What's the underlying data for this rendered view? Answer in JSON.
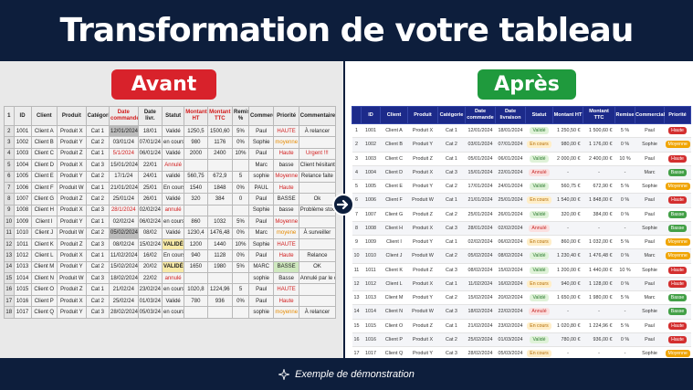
{
  "header": {
    "title": "Transformation de votre tableau"
  },
  "labels": {
    "avant": "Avant",
    "apres": "Après"
  },
  "footer": {
    "text": "Exemple de démonstration",
    "icon": "sparkle-icon"
  },
  "colors": {
    "navy": "#0d1e3c",
    "avant": "#d8222b",
    "apres": "#1f9a3d",
    "header_blue": "#1c2a8a"
  },
  "old_table": {
    "headers": [
      "1",
      "ID",
      "Client",
      "Produit",
      "Catégorie",
      "Date commande",
      "Date livr.",
      "Statut",
      "Montant HT",
      "Montant TTC",
      "Remise %",
      "Commercial",
      "Priorité",
      "Commentaires"
    ],
    "rows": [
      [
        "2",
        "1001",
        "Client A",
        "Produit X",
        "Cat 1",
        "12/01/2024",
        "18/01",
        "Validé",
        "1250,5",
        "1500,60",
        "5%",
        "Paul",
        "HAUTE",
        "À relancer"
      ],
      [
        "3",
        "1002",
        "Client B",
        "Produit Y",
        "Cat 2",
        "03/01/24",
        "07/01/24",
        "en cours",
        "980",
        "1176",
        "0%",
        "Sophie",
        "moyenne",
        ""
      ],
      [
        "4",
        "1003",
        "Client C",
        "Produit Z",
        "Cat 1",
        "5/1/2024",
        "06/01/24",
        "Validé",
        "2000",
        "2400",
        "10%",
        "Paul",
        "Haute",
        "Urgent !!!"
      ],
      [
        "5",
        "1004",
        "Client D",
        "Produit X",
        "Cat 3",
        "15/01/2024",
        "22/01",
        "Annulé",
        "",
        "",
        "",
        "Marc",
        "basse",
        "Client hésitant"
      ],
      [
        "6",
        "1005",
        "Client E",
        "Produit Y",
        "Cat 2",
        "17/1/24",
        "24/01",
        "validé",
        "560,75",
        "672,9",
        "5",
        "sophie",
        "Moyenne",
        "Relance faite"
      ],
      [
        "7",
        "1006",
        "Client F",
        "Produit W",
        "Cat 1",
        "21/01/2024",
        "25/01",
        "En cours",
        "1540",
        "1848",
        "0%",
        "PAUL",
        "Haute",
        ""
      ],
      [
        "8",
        "1007",
        "Client G",
        "Produit Z",
        "Cat 2",
        "25/01/24",
        "26/01",
        "Validé",
        "320",
        "384",
        "0",
        "Paul",
        "BASSE",
        "Ok"
      ],
      [
        "9",
        "1008",
        "Client H",
        "Produit X",
        "Cat 3",
        "28/1/2024",
        "02/02/24",
        "annulé",
        "",
        "",
        "",
        "Sophie",
        "basse",
        "Problème stock"
      ],
      [
        "10",
        "1009",
        "Client I",
        "Produit Y",
        "Cat 1",
        "02/02/24",
        "06/02/24",
        "en cours",
        "860",
        "1032",
        "5%",
        "Paul",
        "Moyenne",
        ""
      ],
      [
        "11",
        "1010",
        "Client J",
        "Produit W",
        "Cat 2",
        "05/02/2024",
        "08/02",
        "Validé",
        "1230,4",
        "1476,48",
        "0%",
        "Marc",
        "moyene",
        "À surveiller"
      ],
      [
        "12",
        "1011",
        "Client K",
        "Produit Z",
        "Cat 3",
        "08/02/24",
        "15/02/24",
        "VALIDÉ",
        "1200",
        "1440",
        "10%",
        "Sophie",
        "HAUTE",
        ""
      ],
      [
        "13",
        "1012",
        "Client L",
        "Produit X",
        "Cat 1",
        "11/02/2024",
        "16/02",
        "En cours",
        "940",
        "1128",
        "0%",
        "Paul",
        "Haute",
        "Relance"
      ],
      [
        "14",
        "1013",
        "Client M",
        "Produit Y",
        "Cat 2",
        "15/02/2024",
        "20/02",
        "VALIDÉ",
        "1650",
        "1980",
        "5%",
        "MARC",
        "BASSE",
        "OK"
      ],
      [
        "15",
        "1014",
        "Client N",
        "Produit W",
        "Cat 3",
        "18/02/2024",
        "22/02",
        "annulé",
        "",
        "",
        "",
        "sophie",
        "Basse",
        "Annulé par le client"
      ],
      [
        "16",
        "1015",
        "Client O",
        "Produit Z",
        "Cat 1",
        "21/02/24",
        "23/02/24",
        "en cours",
        "1020,8",
        "1224,96",
        "5",
        "Paul",
        "HAUTE",
        ""
      ],
      [
        "17",
        "1016",
        "Client P",
        "Produit X",
        "Cat 2",
        "25/02/24",
        "01/03/24",
        "Validé",
        "780",
        "936",
        "0%",
        "Paul",
        "Haute",
        ""
      ],
      [
        "18",
        "1017",
        "Client Q",
        "Produit Y",
        "Cat 3",
        "28/02/2024",
        "05/03/24",
        "en cours",
        "",
        "",
        "",
        "sophie",
        "moyenne",
        "À relancer"
      ]
    ]
  },
  "new_table": {
    "headers": [
      "",
      "ID",
      "Client",
      "Produit",
      "Catégorie",
      "Date commande",
      "Date livraison",
      "Statut",
      "Montant HT",
      "Montant TTC",
      "Remise",
      "Commercial",
      "Priorité"
    ],
    "rows": [
      [
        "1",
        "1001",
        "Client A",
        "Produit X",
        "Cat 1",
        "12/01/2024",
        "18/01/2024",
        "Validé",
        "1 250,50 €",
        "1 500,60 €",
        "5 %",
        "Paul",
        "Haute"
      ],
      [
        "2",
        "1002",
        "Client B",
        "Produit Y",
        "Cat 2",
        "03/01/2024",
        "07/01/2024",
        "En cours",
        "980,00 €",
        "1 176,00 €",
        "0 %",
        "Sophie",
        "Moyenne"
      ],
      [
        "3",
        "1003",
        "Client C",
        "Produit Z",
        "Cat 1",
        "05/01/2024",
        "06/01/2024",
        "Validé",
        "2 000,00 €",
        "2 400,00 €",
        "10 %",
        "Paul",
        "Haute"
      ],
      [
        "4",
        "1004",
        "Client D",
        "Produit X",
        "Cat 3",
        "15/01/2024",
        "22/01/2024",
        "Annulé",
        "-",
        "-",
        "-",
        "Marc",
        "Basse"
      ],
      [
        "5",
        "1005",
        "Client E",
        "Produit Y",
        "Cat 2",
        "17/01/2024",
        "24/01/2024",
        "Validé",
        "560,75 €",
        "672,90 €",
        "5 %",
        "Sophie",
        "Moyenne"
      ],
      [
        "6",
        "1006",
        "Client F",
        "Produit W",
        "Cat 1",
        "21/01/2024",
        "25/01/2024",
        "En cours",
        "1 540,00 €",
        "1 848,00 €",
        "0 %",
        "Paul",
        "Haute"
      ],
      [
        "7",
        "1007",
        "Client G",
        "Produit Z",
        "Cat 2",
        "25/01/2024",
        "26/01/2024",
        "Validé",
        "320,00 €",
        "384,00 €",
        "0 %",
        "Paul",
        "Basse"
      ],
      [
        "8",
        "1008",
        "Client H",
        "Produit X",
        "Cat 3",
        "28/01/2024",
        "02/02/2024",
        "Annulé",
        "-",
        "-",
        "-",
        "Sophie",
        "Basse"
      ],
      [
        "9",
        "1009",
        "Client I",
        "Produit Y",
        "Cat 1",
        "02/02/2024",
        "06/02/2024",
        "En cours",
        "860,00 €",
        "1 032,00 €",
        "5 %",
        "Paul",
        "Moyenne"
      ],
      [
        "10",
        "1010",
        "Client J",
        "Produit W",
        "Cat 2",
        "05/02/2024",
        "08/02/2024",
        "Validé",
        "1 230,40 €",
        "1 476,48 €",
        "0 %",
        "Marc",
        "Moyenne"
      ],
      [
        "11",
        "1011",
        "Client K",
        "Produit Z",
        "Cat 3",
        "08/02/2024",
        "15/02/2024",
        "Validé",
        "1 200,00 €",
        "1 440,00 €",
        "10 %",
        "Sophie",
        "Haute"
      ],
      [
        "12",
        "1012",
        "Client L",
        "Produit X",
        "Cat 1",
        "11/02/2024",
        "16/02/2024",
        "En cours",
        "940,00 €",
        "1 128,00 €",
        "0 %",
        "Paul",
        "Haute"
      ],
      [
        "13",
        "1013",
        "Client M",
        "Produit Y",
        "Cat 2",
        "15/02/2024",
        "20/02/2024",
        "Validé",
        "1 650,00 €",
        "1 980,00 €",
        "5 %",
        "Marc",
        "Basse"
      ],
      [
        "14",
        "1014",
        "Client N",
        "Produit W",
        "Cat 3",
        "18/02/2024",
        "22/02/2024",
        "Annulé",
        "-",
        "-",
        "-",
        "Sophie",
        "Basse"
      ],
      [
        "15",
        "1015",
        "Client O",
        "Produit Z",
        "Cat 1",
        "21/02/2024",
        "23/02/2024",
        "En cours",
        "1 020,80 €",
        "1 224,96 €",
        "5 %",
        "Paul",
        "Haute"
      ],
      [
        "16",
        "1016",
        "Client P",
        "Produit X",
        "Cat 2",
        "25/02/2024",
        "01/03/2024",
        "Validé",
        "780,00 €",
        "936,00 €",
        "0 %",
        "Paul",
        "Haute"
      ],
      [
        "17",
        "1017",
        "Client Q",
        "Produit Y",
        "Cat 3",
        "28/02/2024",
        "05/03/2024",
        "En cours",
        "-",
        "-",
        "-",
        "Sophie",
        "Moyenne"
      ]
    ]
  }
}
